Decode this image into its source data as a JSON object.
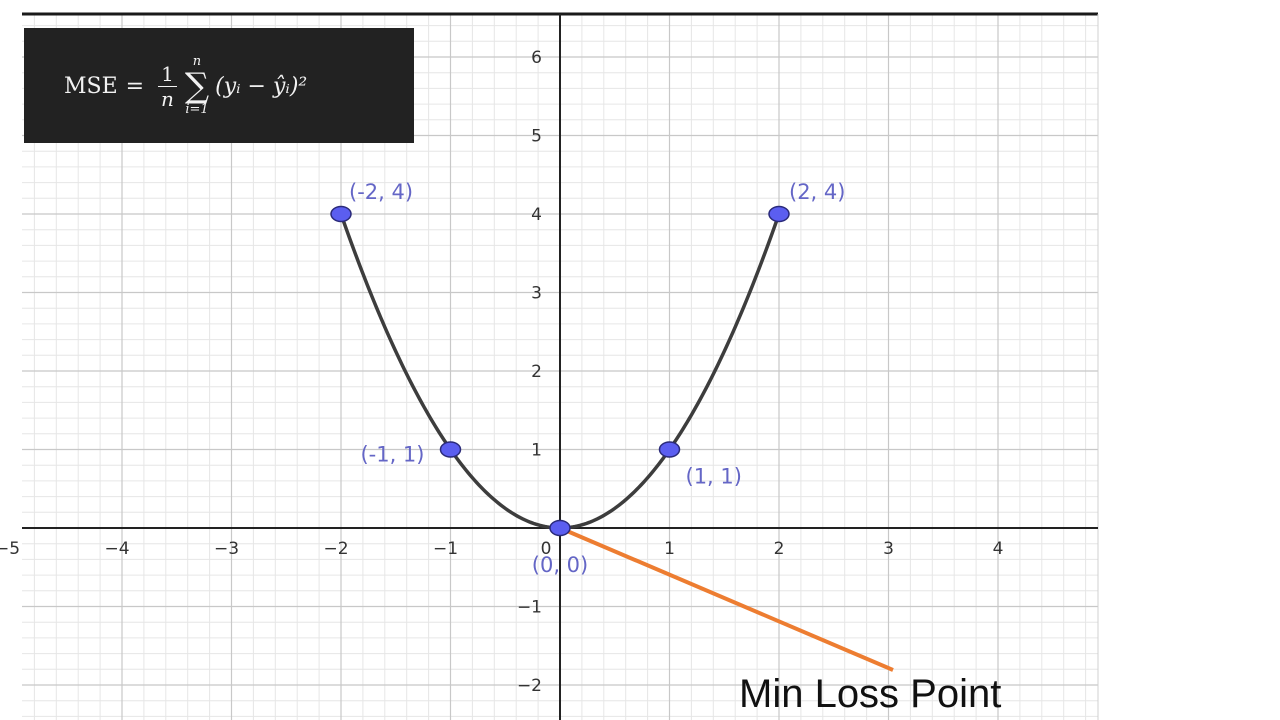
{
  "formula": {
    "lhs": "MSE",
    "equals": "=",
    "frac_num": "1",
    "frac_den": "n",
    "sum_upper": "n",
    "sum_symbol": "∑",
    "sum_lower": "i=1",
    "body": "(yᵢ − ŷᵢ)²"
  },
  "annotation": {
    "text": "Min Loss Point",
    "arrow_color": "#ed7d31"
  },
  "chart_data": {
    "type": "line",
    "function": "y = x^2",
    "curve_color": "#3d3d3d",
    "point_color": "#5b5ef0",
    "label_color": "#6466c6",
    "xlim": [
      -5,
      5
    ],
    "ylim": [
      -2.4,
      6.5
    ],
    "grid": true,
    "points": [
      {
        "x": -2,
        "y": 4,
        "label": "(-2, 4)"
      },
      {
        "x": -1,
        "y": 1,
        "label": "(-1, 1)"
      },
      {
        "x": 0,
        "y": 0,
        "label": "(0, 0)"
      },
      {
        "x": 1,
        "y": 1,
        "label": "(1, 1)"
      },
      {
        "x": 2,
        "y": 4,
        "label": "(2, 4)"
      }
    ],
    "x_ticks": [
      "−5",
      "−4",
      "−3",
      "−2",
      "−1",
      "0",
      "1",
      "2",
      "3",
      "4"
    ],
    "y_ticks": [
      "−2",
      "−1",
      "1",
      "2",
      "3",
      "4",
      "5",
      "6"
    ]
  }
}
